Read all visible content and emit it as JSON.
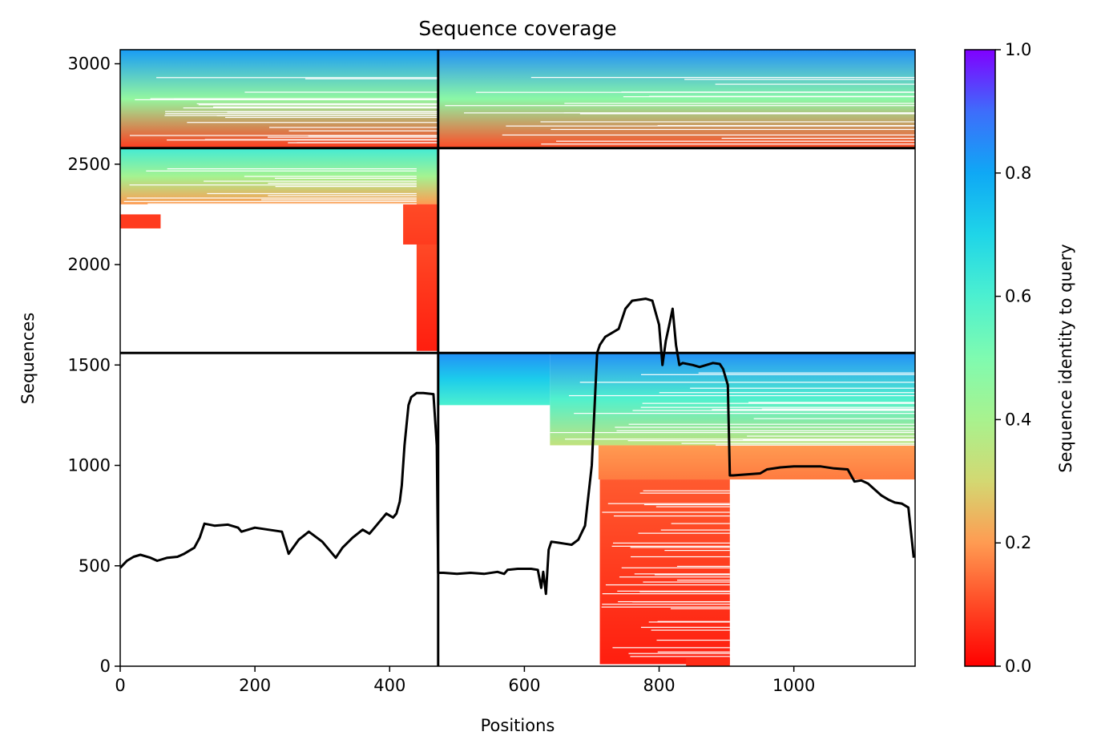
{
  "chart_data": {
    "type": "heatmap",
    "title": "Sequence coverage",
    "xlabel": "Positions",
    "ylabel": "Sequences",
    "colorbar_label": "Sequence identity to query",
    "colormap": "rainbow_r",
    "xlim": [
      0,
      1180
    ],
    "ylim": [
      0,
      3070
    ],
    "clim": [
      0,
      1
    ],
    "x_ticks": [
      0,
      200,
      400,
      600,
      800,
      1000
    ],
    "y_ticks": [
      0,
      500,
      1000,
      1500,
      2000,
      2500,
      3000
    ],
    "colorbar_ticks": [
      "0.0",
      "0.2",
      "0.4",
      "0.6",
      "0.8",
      "1.0"
    ],
    "divider_positions": [
      472
    ],
    "divider_sequences": [
      1560,
      2580
    ],
    "coverage_blocks": [
      {
        "x0": 0,
        "x1": 472,
        "y0": 2580,
        "y1": 3070,
        "id_top": 0.82,
        "id_bottom": 0.08
      },
      {
        "x0": 472,
        "x1": 1180,
        "y0": 2580,
        "y1": 3070,
        "id_top": 0.84,
        "id_bottom": 0.1
      },
      {
        "x0": 0,
        "x1": 472,
        "y0": 2300,
        "y1": 2580,
        "id_top": 0.62,
        "id_bottom": 0.2
      },
      {
        "x0": 440,
        "x1": 472,
        "y0": 1570,
        "y1": 2300,
        "id_top": 0.12,
        "id_bottom": 0.04
      },
      {
        "x0": 420,
        "x1": 472,
        "y0": 2100,
        "y1": 2300,
        "id_top": 0.1,
        "id_bottom": 0.08
      },
      {
        "x0": 0,
        "x1": 60,
        "y0": 2180,
        "y1": 2250,
        "id_top": 0.08,
        "id_bottom": 0.08
      },
      {
        "x0": 638,
        "x1": 1180,
        "y0": 1100,
        "y1": 1560,
        "id_top": 0.84,
        "id_bottom": 0.34
      },
      {
        "x0": 472,
        "x1": 638,
        "y0": 1300,
        "y1": 1560,
        "id_top": 0.84,
        "id_bottom": 0.6
      },
      {
        "x0": 710,
        "x1": 1180,
        "y0": 930,
        "y1": 1100,
        "id_top": 0.2,
        "id_bottom": 0.16
      },
      {
        "x0": 712,
        "x1": 905,
        "y0": 10,
        "y1": 930,
        "id_top": 0.12,
        "id_bottom": 0.04
      },
      {
        "x0": 840,
        "x1": 905,
        "y0": 0,
        "y1": 40,
        "id_top": 0.06,
        "id_bottom": 0.06
      }
    ],
    "coverage_line": {
      "x": [
        0,
        10,
        20,
        30,
        45,
        55,
        70,
        85,
        95,
        110,
        118,
        125,
        140,
        160,
        175,
        180,
        190,
        200,
        220,
        240,
        250,
        265,
        280,
        300,
        310,
        320,
        330,
        345,
        360,
        370,
        380,
        395,
        405,
        410,
        415,
        418,
        422,
        425,
        428,
        432,
        440,
        450,
        465,
        470,
        472,
        480,
        500,
        520,
        540,
        560,
        570,
        575,
        590,
        610,
        620,
        625,
        628,
        632,
        636,
        640,
        650,
        660,
        670,
        680,
        690,
        700,
        708,
        712,
        720,
        740,
        750,
        760,
        770,
        780,
        790,
        800,
        805,
        810,
        815,
        820,
        825,
        830,
        835,
        850,
        860,
        870,
        880,
        890,
        895,
        902,
        905,
        910,
        930,
        950,
        960,
        980,
        1000,
        1020,
        1040,
        1060,
        1080,
        1090,
        1100,
        1110,
        1120,
        1130,
        1140,
        1150,
        1160,
        1170,
        1178
      ],
      "y": [
        490,
        525,
        545,
        555,
        540,
        525,
        540,
        545,
        560,
        590,
        640,
        710,
        700,
        705,
        690,
        670,
        680,
        690,
        680,
        670,
        560,
        630,
        670,
        620,
        580,
        540,
        590,
        640,
        680,
        660,
        700,
        760,
        740,
        760,
        820,
        900,
        1100,
        1200,
        1300,
        1340,
        1360,
        1360,
        1355,
        1100,
        465,
        465,
        460,
        465,
        460,
        470,
        460,
        480,
        485,
        485,
        480,
        390,
        470,
        360,
        580,
        620,
        615,
        610,
        605,
        630,
        700,
        1000,
        1560,
        1600,
        1640,
        1680,
        1780,
        1820,
        1825,
        1830,
        1820,
        1700,
        1500,
        1620,
        1700,
        1780,
        1600,
        1500,
        1510,
        1500,
        1490,
        1500,
        1510,
        1505,
        1480,
        1400,
        950,
        950,
        955,
        960,
        980,
        990,
        995,
        995,
        995,
        985,
        980,
        920,
        925,
        910,
        880,
        850,
        830,
        815,
        810,
        790,
        540
      ]
    }
  }
}
